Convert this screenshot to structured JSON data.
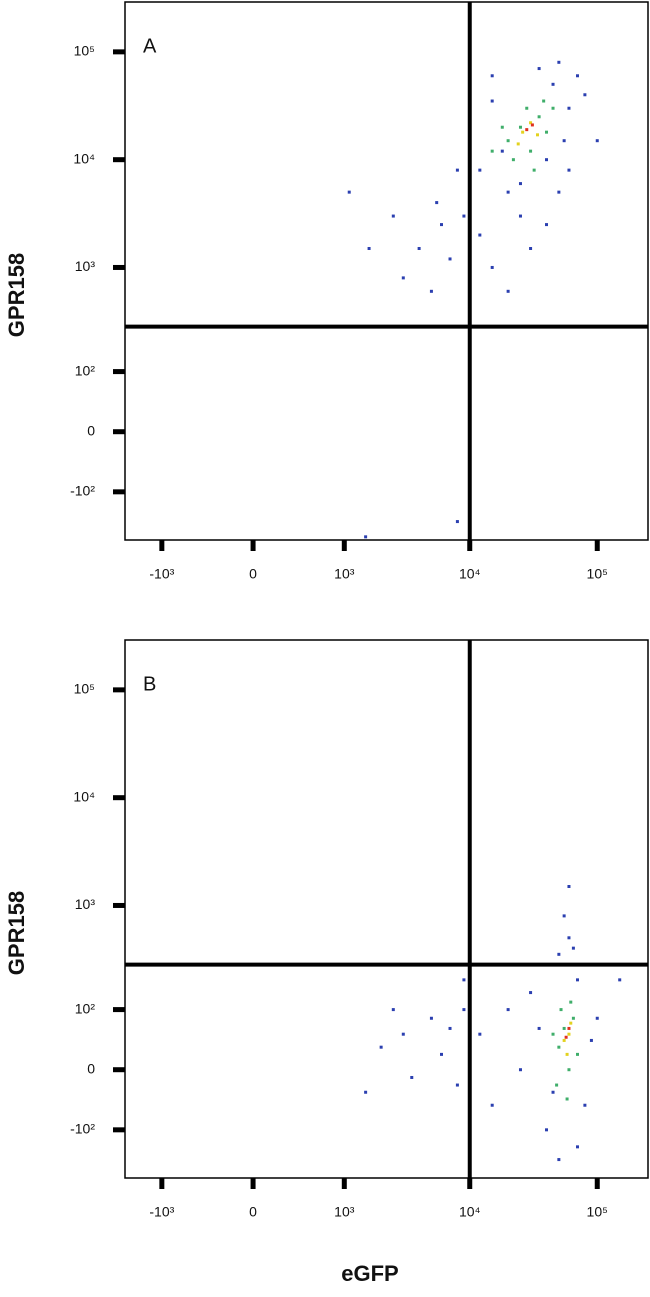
{
  "chart_data": [
    {
      "type": "scatter",
      "label": "A",
      "ylabel": "GPR158",
      "xlim": [
        -2000,
        250000
      ],
      "ylim": [
        -300,
        290000
      ],
      "xticks": [
        {
          "value": -1000,
          "label": "-10³"
        },
        0,
        {
          "value": 1000,
          "label": "10³"
        },
        {
          "value": 10000,
          "label": "10⁴"
        },
        {
          "value": 100000,
          "label": "10⁵"
        }
      ],
      "yticks": [
        {
          "value": 100000,
          "label": "10⁵"
        },
        {
          "value": 10000,
          "label": "10⁴"
        },
        {
          "value": 1000,
          "label": "10³"
        },
        {
          "value": 100,
          "label": "10²"
        },
        0,
        {
          "value": -100,
          "label": "-10²"
        }
      ],
      "gate_x": 10000,
      "gate_y": 280,
      "series": [
        {
          "color": "#2b3fb0",
          "x": [
            1100,
            1600,
            2500,
            3000,
            4000,
            5000,
            6000,
            7000,
            8000,
            5500,
            9000,
            12000,
            15000,
            20000,
            25000,
            30000,
            40000,
            50000,
            60000,
            80000,
            100000,
            50000,
            70000,
            15000,
            12000,
            20000,
            60000,
            10000,
            45000,
            35000,
            15000,
            25000,
            40000,
            55000,
            18000,
            8000,
            1500
          ],
          "values": [
            5000,
            1500,
            3000,
            800,
            1500,
            600,
            2500,
            1200,
            8000,
            4000,
            3000,
            2000,
            1000,
            600,
            3000,
            1500,
            2500,
            5000,
            8000,
            40000,
            15000,
            80000,
            60000,
            60000,
            8000,
            5000,
            30000,
            15000,
            50000,
            70000,
            35000,
            6000,
            10000,
            15000,
            12000,
            -200,
            -280
          ]
        },
        {
          "color": "#3fae6a",
          "x": [
            20000,
            25000,
            30000,
            35000,
            28000,
            22000,
            40000,
            18000,
            32000,
            45000,
            15000,
            38000
          ],
          "values": [
            15000,
            20000,
            12000,
            25000,
            30000,
            10000,
            18000,
            20000,
            8000,
            30000,
            12000,
            35000
          ]
        },
        {
          "color": "#e3d21e",
          "x": [
            26000,
            30000,
            24000,
            34000
          ],
          "values": [
            18000,
            22000,
            14000,
            17000
          ]
        },
        {
          "color": "#e0301e",
          "x": [
            28000,
            31000
          ],
          "values": [
            19000,
            21000
          ]
        }
      ]
    },
    {
      "type": "scatter",
      "label": "B",
      "ylabel": "GPR158",
      "xlabel": "eGFP",
      "xlim": [
        -2000,
        250000
      ],
      "ylim": [
        -300,
        290000
      ],
      "xticks": [
        {
          "value": -1000,
          "label": "-10³"
        },
        0,
        {
          "value": 1000,
          "label": "10³"
        },
        {
          "value": 10000,
          "label": "10⁴"
        },
        {
          "value": 100000,
          "label": "10⁵"
        }
      ],
      "yticks": [
        {
          "value": 100000,
          "label": "10⁵"
        },
        {
          "value": 10000,
          "label": "10⁴"
        },
        {
          "value": 1000,
          "label": "10³"
        },
        {
          "value": 100,
          "label": "10²"
        },
        0,
        {
          "value": -100,
          "label": "-10²"
        }
      ],
      "gate_x": 10000,
      "gate_y": 280,
      "series": [
        {
          "color": "#2b3fb0",
          "x": [
            2000,
            2500,
            3000,
            3500,
            5000,
            6000,
            7000,
            8000,
            9000,
            9000,
            12000,
            15000,
            20000,
            25000,
            30000,
            40000,
            50000,
            80000,
            100000,
            70000,
            60000,
            55000,
            60000,
            65000,
            50000,
            70000,
            90000,
            35000,
            45000,
            150000,
            1500
          ],
          "values": [
            30,
            100,
            50,
            -10,
            80,
            20,
            60,
            -20,
            100,
            200,
            50,
            -50,
            100,
            0,
            150,
            -100,
            -200,
            -50,
            80,
            200,
            500,
            800,
            1500,
            400,
            350,
            -150,
            40,
            60,
            -30,
            200,
            -30
          ]
        },
        {
          "color": "#3fae6a",
          "x": [
            50000,
            55000,
            60000,
            65000,
            45000,
            70000,
            58000,
            52000,
            62000,
            48000
          ],
          "values": [
            30,
            60,
            0,
            80,
            50,
            20,
            -40,
            100,
            120,
            -20
          ]
        },
        {
          "color": "#e3d21e",
          "x": [
            55000,
            60000,
            58000,
            62000
          ],
          "values": [
            40,
            50,
            20,
            70
          ]
        },
        {
          "color": "#e0301e",
          "x": [
            57000,
            60000
          ],
          "values": [
            45,
            60
          ]
        }
      ]
    }
  ]
}
